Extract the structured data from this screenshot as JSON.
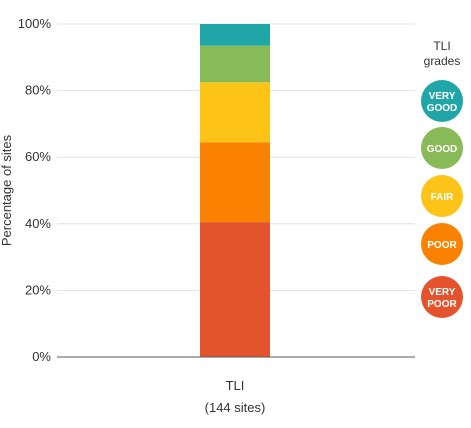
{
  "chart_data": {
    "type": "bar",
    "stacked": true,
    "categories": [
      "TLI"
    ],
    "category_subtitle": "(144 sites)",
    "ylabel": "Percentage of sites",
    "ylim": [
      0,
      100
    ],
    "yticks": [
      "0%",
      "20%",
      "40%",
      "60%",
      "80%",
      "100%"
    ],
    "grid": true,
    "legend_title": "TLI grades",
    "legend_placement": "right",
    "series": [
      {
        "name": "VERY POOR",
        "values": [
          40.5
        ],
        "color": "#e5532d"
      },
      {
        "name": "POOR",
        "values": [
          24.0
        ],
        "color": "#fb8200"
      },
      {
        "name": "FAIR",
        "values": [
          18.0
        ],
        "color": "#fdc316"
      },
      {
        "name": "GOOD",
        "values": [
          11.0
        ],
        "color": "#88bb58"
      },
      {
        "name": "VERY GOOD",
        "values": [
          6.5
        ],
        "color": "#21a6a8"
      }
    ]
  }
}
